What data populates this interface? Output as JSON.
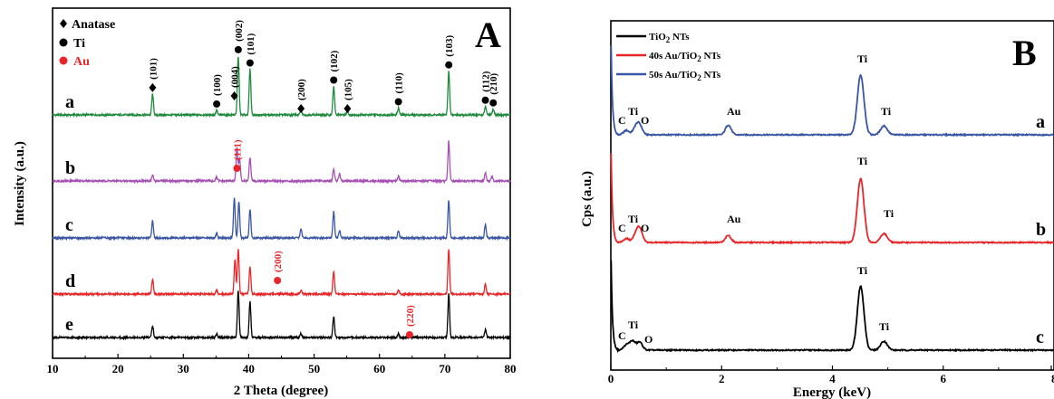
{
  "chart_data": [
    {
      "type": "line",
      "panel_label": "A",
      "xlabel": "2 Theta (degree)",
      "ylabel": "Intensity (a.u.)",
      "xlim": [
        10,
        80
      ],
      "xticks": [
        10,
        20,
        30,
        40,
        50,
        60,
        70,
        80
      ],
      "legend": [
        {
          "marker": "diamond",
          "label": "Anatase",
          "color": "#000000"
        },
        {
          "marker": "circle",
          "label": "Ti",
          "color": "#000000"
        },
        {
          "marker": "circle",
          "label": "Au",
          "color": "#e8262a"
        }
      ],
      "series": [
        {
          "label": "a",
          "color": "#1e8a3c",
          "peaks": [
            {
              "x": 25.3,
              "h": 0.55
            },
            {
              "x": 35.1,
              "h": 0.12
            },
            {
              "x": 38.4,
              "h": 1.55
            },
            {
              "x": 40.2,
              "h": 1.2
            },
            {
              "x": 48.0,
              "h": 0.12
            },
            {
              "x": 53.0,
              "h": 0.75
            },
            {
              "x": 55.1,
              "h": 0.1
            },
            {
              "x": 62.9,
              "h": 0.18
            },
            {
              "x": 70.6,
              "h": 1.15
            },
            {
              "x": 76.2,
              "h": 0.22
            },
            {
              "x": 77.4,
              "h": 0.15
            }
          ]
        },
        {
          "label": "b",
          "color": "#a64fb4",
          "peaks": [
            {
              "x": 25.3,
              "h": 0.15
            },
            {
              "x": 35.1,
              "h": 0.1
            },
            {
              "x": 38.2,
              "h": 0.9
            },
            {
              "x": 38.6,
              "h": 0.6
            },
            {
              "x": 40.2,
              "h": 0.6
            },
            {
              "x": 53.0,
              "h": 0.3
            },
            {
              "x": 53.9,
              "h": 0.2
            },
            {
              "x": 62.9,
              "h": 0.12
            },
            {
              "x": 70.6,
              "h": 1.05
            },
            {
              "x": 76.2,
              "h": 0.22
            },
            {
              "x": 77.2,
              "h": 0.12
            }
          ]
        },
        {
          "label": "c",
          "color": "#3855a6",
          "peaks": [
            {
              "x": 25.3,
              "h": 0.45
            },
            {
              "x": 35.1,
              "h": 0.12
            },
            {
              "x": 37.8,
              "h": 1.05
            },
            {
              "x": 38.5,
              "h": 0.95
            },
            {
              "x": 40.2,
              "h": 0.75
            },
            {
              "x": 48.0,
              "h": 0.25
            },
            {
              "x": 53.0,
              "h": 0.7
            },
            {
              "x": 53.9,
              "h": 0.2
            },
            {
              "x": 62.9,
              "h": 0.2
            },
            {
              "x": 70.6,
              "h": 1.0
            },
            {
              "x": 76.2,
              "h": 0.35
            }
          ]
        },
        {
          "label": "d",
          "color": "#e8262a",
          "peaks": [
            {
              "x": 25.3,
              "h": 0.4
            },
            {
              "x": 35.1,
              "h": 0.1
            },
            {
              "x": 37.9,
              "h": 0.9
            },
            {
              "x": 38.4,
              "h": 1.2
            },
            {
              "x": 40.2,
              "h": 0.7
            },
            {
              "x": 48.0,
              "h": 0.1
            },
            {
              "x": 53.0,
              "h": 0.6
            },
            {
              "x": 62.9,
              "h": 0.1
            },
            {
              "x": 70.6,
              "h": 1.2
            },
            {
              "x": 76.2,
              "h": 0.25
            }
          ]
        },
        {
          "label": "e",
          "color": "#000000",
          "peaks": [
            {
              "x": 25.3,
              "h": 0.3
            },
            {
              "x": 35.1,
              "h": 0.1
            },
            {
              "x": 38.4,
              "h": 1.25
            },
            {
              "x": 40.2,
              "h": 0.95
            },
            {
              "x": 48.0,
              "h": 0.1
            },
            {
              "x": 53.0,
              "h": 0.55
            },
            {
              "x": 62.9,
              "h": 0.1
            },
            {
              "x": 70.6,
              "h": 1.15
            },
            {
              "x": 76.2,
              "h": 0.2
            }
          ]
        }
      ],
      "annotations": [
        {
          "text": "(101)",
          "x": 25.3,
          "marker": "diamond",
          "series": "a",
          "color": "#000000"
        },
        {
          "text": "(100)",
          "x": 35.1,
          "marker": "circle",
          "series": "a",
          "color": "#000000"
        },
        {
          "text": "(004)",
          "x": 37.8,
          "marker": "diamond",
          "series": "a",
          "color": "#000000"
        },
        {
          "text": "(002)",
          "x": 38.4,
          "marker": "circle",
          "series": "a",
          "color": "#000000"
        },
        {
          "text": "(101)",
          "x": 40.2,
          "marker": "circle",
          "series": "a",
          "color": "#000000"
        },
        {
          "text": "(200)",
          "x": 48.0,
          "marker": "diamond",
          "series": "a",
          "color": "#000000"
        },
        {
          "text": "(102)",
          "x": 53.0,
          "marker": "circle",
          "series": "a",
          "color": "#000000"
        },
        {
          "text": "(105)",
          "x": 55.1,
          "marker": "diamond",
          "series": "a",
          "color": "#000000"
        },
        {
          "text": "(110)",
          "x": 62.9,
          "marker": "circle",
          "series": "a",
          "color": "#000000"
        },
        {
          "text": "(103)",
          "x": 70.6,
          "marker": "circle",
          "series": "a",
          "color": "#000000"
        },
        {
          "text": "(112)",
          "x": 76.2,
          "marker": "circle",
          "series": "a",
          "color": "#000000"
        },
        {
          "text": "(210)",
          "x": 77.4,
          "marker": "circle",
          "series": "a",
          "color": "#000000"
        },
        {
          "text": "(111)",
          "x": 38.2,
          "marker": "circle",
          "series": "b",
          "color": "#e8262a"
        },
        {
          "text": "(200)",
          "x": 44.4,
          "marker": "circle",
          "series": "d",
          "color": "#e8262a"
        },
        {
          "text": "(220)",
          "x": 64.6,
          "marker": "circle",
          "series": "e",
          "color": "#e8262a"
        }
      ]
    },
    {
      "type": "line",
      "panel_label": "B",
      "xlabel": "Energy (keV)",
      "ylabel": "Cps (a.u.)",
      "xlim": [
        0,
        8
      ],
      "xticks": [
        0,
        2,
        4,
        6,
        8
      ],
      "legend": [
        {
          "label_main": "TiO",
          "label_sub": "2",
          "label_rest": " NTs",
          "color": "#000000"
        },
        {
          "label_main": "40s Au/TiO",
          "label_sub": "2",
          "label_rest": " NTs",
          "color": "#e8262a"
        },
        {
          "label_main": "50s Au/TiO",
          "label_sub": "2",
          "label_rest": " NTs",
          "color": "#3855a6"
        }
      ],
      "series": [
        {
          "label": "a",
          "color": "#3855a6",
          "peaks": [
            {
              "x": 0.28,
              "h": 0.22
            },
            {
              "x": 0.45,
              "h": 0.35
            },
            {
              "x": 0.52,
              "h": 0.45
            },
            {
              "x": 2.12,
              "h": 0.5
            },
            {
              "x": 4.51,
              "h": 3.0
            },
            {
              "x": 4.93,
              "h": 0.45
            }
          ]
        },
        {
          "label": "b",
          "color": "#e8262a",
          "peaks": [
            {
              "x": 0.28,
              "h": 0.2
            },
            {
              "x": 0.45,
              "h": 0.35
            },
            {
              "x": 0.52,
              "h": 0.65
            },
            {
              "x": 2.12,
              "h": 0.35
            },
            {
              "x": 4.51,
              "h": 3.2
            },
            {
              "x": 4.93,
              "h": 0.45
            }
          ]
        },
        {
          "label": "c",
          "color": "#000000",
          "peaks": [
            {
              "x": 0.28,
              "h": 0.25
            },
            {
              "x": 0.39,
              "h": 0.45
            },
            {
              "x": 0.52,
              "h": 0.4
            },
            {
              "x": 4.51,
              "h": 3.2
            },
            {
              "x": 4.93,
              "h": 0.45
            }
          ]
        }
      ],
      "annotations": [
        {
          "series": "a",
          "items": [
            "C",
            "Ti",
            "O",
            "Au",
            "Ti",
            "Ti"
          ]
        },
        {
          "series": "b",
          "items": [
            "C",
            "Ti",
            "O",
            "Au",
            "Ti",
            "Ti"
          ]
        },
        {
          "series": "c",
          "items": [
            "C",
            "Ti",
            "O",
            "Ti",
            "Ti"
          ]
        }
      ]
    }
  ]
}
